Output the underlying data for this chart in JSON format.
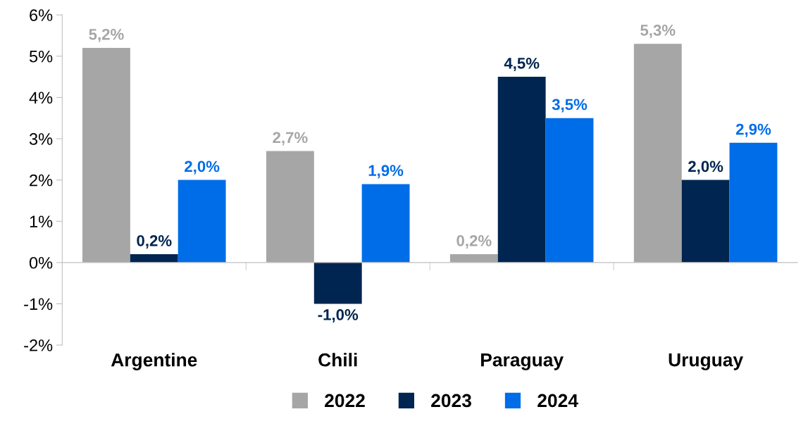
{
  "chart_data": {
    "type": "bar",
    "categories": [
      "Argentine",
      "Chili",
      "Paraguay",
      "Uruguay"
    ],
    "series": [
      {
        "name": "2022",
        "color": "#a6a6a6",
        "values": [
          5.2,
          2.7,
          0.2,
          5.3
        ],
        "value_labels": [
          "5,2%",
          "2,7%",
          "0,2%",
          "5,3%"
        ]
      },
      {
        "name": "2023",
        "color": "#002550",
        "values": [
          0.2,
          -1.0,
          4.5,
          2.0
        ],
        "value_labels": [
          "0,2%",
          "-1,0%",
          "4,5%",
          "2,0%"
        ]
      },
      {
        "name": "2024",
        "color": "#006de8",
        "values": [
          2.0,
          1.9,
          3.5,
          2.9
        ],
        "value_labels": [
          "2,0%",
          "1,9%",
          "3,5%",
          "2,9%"
        ]
      }
    ],
    "ylim": [
      -2,
      6
    ],
    "yticks": [
      {
        "value": -2,
        "label": "-2%"
      },
      {
        "value": -1,
        "label": "-1%"
      },
      {
        "value": 0,
        "label": "0%"
      },
      {
        "value": 1,
        "label": "1%"
      },
      {
        "value": 2,
        "label": "2%"
      },
      {
        "value": 3,
        "label": "3%"
      },
      {
        "value": 4,
        "label": "4%"
      },
      {
        "value": 5,
        "label": "5%"
      },
      {
        "value": 6,
        "label": "6%"
      }
    ],
    "legend": "bottom"
  }
}
